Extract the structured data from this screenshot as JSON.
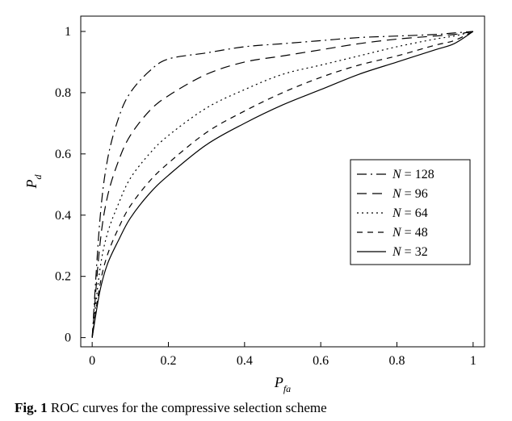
{
  "chart": {
    "type": "line",
    "background_color": "#ffffff",
    "border_color": "#000000",
    "grid": false,
    "xlim": [
      -0.03,
      1.03
    ],
    "ylim": [
      -0.03,
      1.05
    ],
    "xticks": [
      0,
      0.2,
      0.4,
      0.6,
      0.8,
      1
    ],
    "yticks": [
      0,
      0.2,
      0.4,
      0.6,
      0.8,
      1
    ],
    "xlabel": "P_fa",
    "ylabel": "P_d",
    "label_fontsize": 18,
    "tick_fontsize": 16,
    "line_color": "#000000",
    "line_width": 1.2,
    "legend": {
      "position": "right-middle",
      "border_color": "#000000",
      "items": [
        {
          "label": "N = 128",
          "style": "dash-dot"
        },
        {
          "label": "N = 96",
          "style": "long-dash"
        },
        {
          "label": "N = 64",
          "style": "dot"
        },
        {
          "label": "N = 48",
          "style": "short-dash"
        },
        {
          "label": "N = 32",
          "style": "solid"
        }
      ]
    },
    "series": [
      {
        "name": "N=128",
        "style": "dash-dot",
        "x": [
          0.0,
          0.02,
          0.04,
          0.07,
          0.1,
          0.15,
          0.2,
          0.3,
          0.4,
          0.5,
          0.6,
          0.7,
          0.8,
          0.9,
          0.95,
          1.0
        ],
        "y": [
          0.0,
          0.38,
          0.58,
          0.72,
          0.8,
          0.87,
          0.91,
          0.93,
          0.95,
          0.96,
          0.97,
          0.98,
          0.985,
          0.99,
          0.995,
          1.0
        ]
      },
      {
        "name": "N=96",
        "style": "long-dash",
        "x": [
          0.0,
          0.02,
          0.04,
          0.07,
          0.1,
          0.15,
          0.2,
          0.3,
          0.4,
          0.5,
          0.6,
          0.7,
          0.8,
          0.9,
          0.95,
          1.0
        ],
        "y": [
          0.0,
          0.3,
          0.46,
          0.58,
          0.66,
          0.74,
          0.79,
          0.86,
          0.9,
          0.92,
          0.94,
          0.96,
          0.975,
          0.985,
          0.99,
          1.0
        ]
      },
      {
        "name": "N=64",
        "style": "dot",
        "x": [
          0.0,
          0.02,
          0.04,
          0.07,
          0.1,
          0.15,
          0.2,
          0.3,
          0.4,
          0.5,
          0.6,
          0.7,
          0.8,
          0.9,
          0.95,
          1.0
        ],
        "y": [
          0.0,
          0.22,
          0.34,
          0.44,
          0.52,
          0.6,
          0.66,
          0.75,
          0.81,
          0.86,
          0.89,
          0.92,
          0.95,
          0.975,
          0.985,
          1.0
        ]
      },
      {
        "name": "N=48",
        "style": "short-dash",
        "x": [
          0.0,
          0.02,
          0.04,
          0.07,
          0.1,
          0.15,
          0.2,
          0.3,
          0.4,
          0.5,
          0.6,
          0.7,
          0.8,
          0.9,
          0.95,
          1.0
        ],
        "y": [
          0.0,
          0.17,
          0.27,
          0.36,
          0.43,
          0.51,
          0.57,
          0.67,
          0.74,
          0.8,
          0.85,
          0.89,
          0.92,
          0.955,
          0.97,
          1.0
        ]
      },
      {
        "name": "N=32",
        "style": "solid",
        "x": [
          0.0,
          0.02,
          0.04,
          0.07,
          0.1,
          0.15,
          0.2,
          0.3,
          0.4,
          0.5,
          0.6,
          0.7,
          0.8,
          0.9,
          0.95,
          1.0
        ],
        "y": [
          0.0,
          0.15,
          0.24,
          0.32,
          0.39,
          0.47,
          0.53,
          0.63,
          0.7,
          0.76,
          0.81,
          0.86,
          0.9,
          0.94,
          0.96,
          1.0
        ]
      }
    ]
  },
  "caption": {
    "prefix": "Fig. 1",
    "text": "  ROC curves for the compressive selection scheme"
  },
  "tick_labels": {
    "x": [
      "0",
      "0.2",
      "0.4",
      "0.6",
      "0.8",
      "1"
    ],
    "y": [
      "0",
      "0.2",
      "0.4",
      "0.6",
      "0.8",
      "1"
    ]
  }
}
